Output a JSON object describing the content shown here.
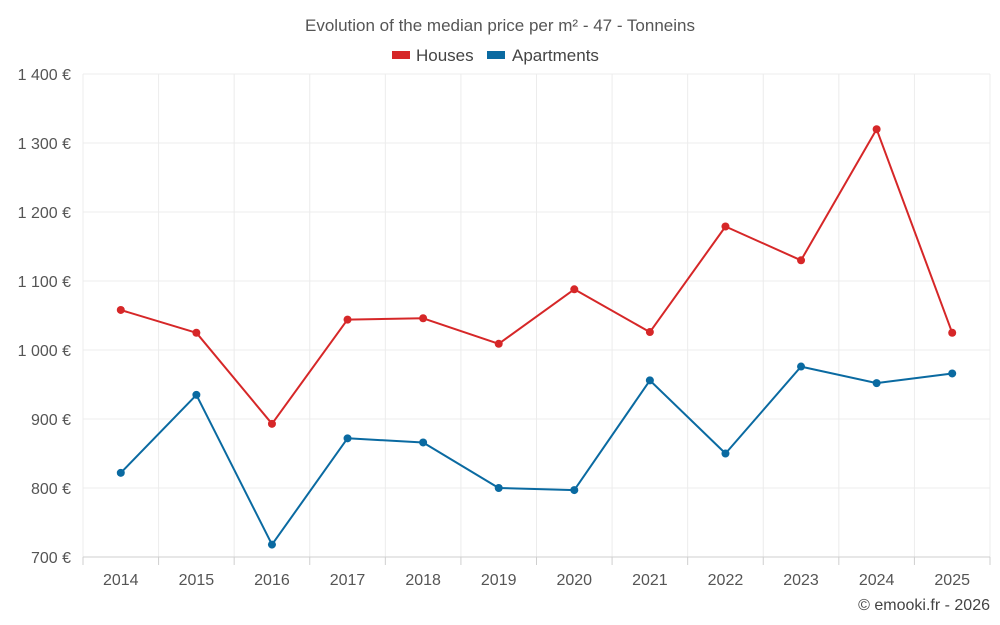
{
  "chart_data": {
    "type": "line",
    "title": "Evolution of the median price per m² - 47 - Tonneins",
    "categories": [
      "2014",
      "2015",
      "2016",
      "2017",
      "2018",
      "2019",
      "2020",
      "2021",
      "2022",
      "2023",
      "2024",
      "2025"
    ],
    "series": [
      {
        "name": "Houses",
        "color": "#d62728",
        "values": [
          1058,
          1025,
          893,
          1044,
          1046,
          1009,
          1088,
          1026,
          1179,
          1130,
          1320,
          1025
        ]
      },
      {
        "name": "Apartments",
        "color": "#0a6aa1",
        "values": [
          822,
          935,
          718,
          872,
          866,
          800,
          797,
          956,
          850,
          976,
          952,
          966
        ]
      }
    ],
    "ylim": [
      700,
      1400
    ],
    "yticks": [
      700,
      800,
      900,
      1000,
      1100,
      1200,
      1300,
      1400
    ],
    "ytick_labels": [
      "700 €",
      "800 €",
      "900 €",
      "1 000 €",
      "1 100 €",
      "1 200 €",
      "1 300 €",
      "1 400 €"
    ],
    "xlabel": "",
    "ylabel": "",
    "grid": true,
    "legend_position": "top-center"
  },
  "credit": "© emooki.fr - 2026"
}
